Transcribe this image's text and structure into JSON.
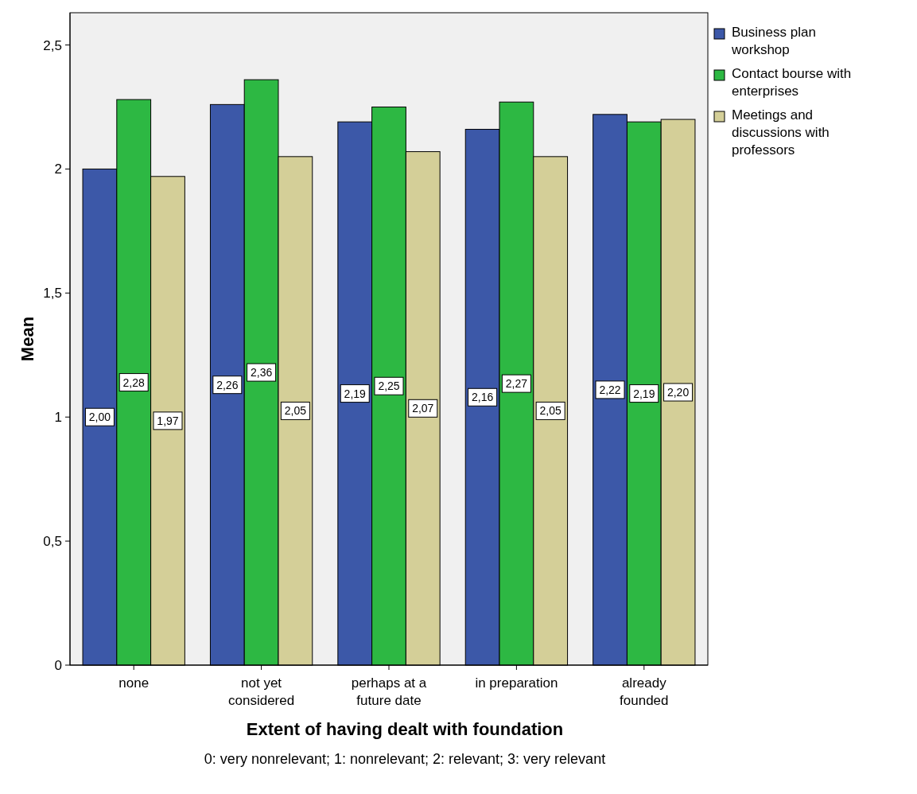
{
  "chart_data": {
    "type": "bar",
    "xlabel": "Extent of having dealt with foundation",
    "ylabel": "Mean",
    "categories": [
      "none",
      "not yet considered",
      "perhaps at a future date",
      "in preparation",
      "already founded"
    ],
    "series": [
      {
        "name": "Business plan workshop",
        "color": "#3c58a8",
        "values": [
          2.0,
          2.26,
          2.19,
          2.16,
          2.22
        ],
        "value_labels": [
          "2,00",
          "2,26",
          "2,19",
          "2,16",
          "2,22"
        ]
      },
      {
        "name": "Contact bourse with enterprises",
        "color": "#2db843",
        "values": [
          2.28,
          2.36,
          2.25,
          2.27,
          2.19
        ],
        "value_labels": [
          "2,28",
          "2,36",
          "2,25",
          "2,27",
          "2,19"
        ]
      },
      {
        "name": "Meetings and discussions with professors",
        "color": "#d4cf98",
        "values": [
          1.97,
          2.05,
          2.07,
          2.05,
          2.2
        ],
        "value_labels": [
          "1,97",
          "2,05",
          "2,07",
          "2,05",
          "2,20"
        ]
      }
    ],
    "ylim": [
      0,
      2.63
    ],
    "yticks": [
      0,
      {
        "value": 0.5,
        "label": "0,5"
      },
      1,
      {
        "value": 1.5,
        "label": "1,5"
      },
      2,
      {
        "value": 2.5,
        "label": "2,5"
      }
    ],
    "grid": false,
    "legend": "top right",
    "annotations": [
      "0: very nonrelevant; 1: nonrelevant; 2: relevant; 3: very relevant"
    ]
  }
}
